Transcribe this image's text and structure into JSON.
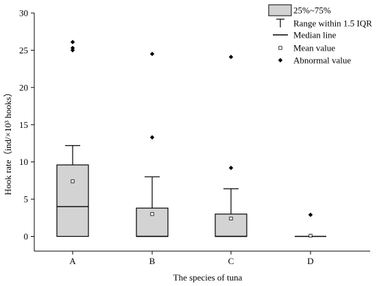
{
  "chart_data": {
    "type": "box",
    "xlabel": "The species of tuna",
    "ylabel": "Hook rate（ind/×10³ hooks）",
    "ylim": [
      0,
      30
    ],
    "yticks": [
      0,
      5,
      10,
      15,
      20,
      25,
      30
    ],
    "categories": [
      "A",
      "B",
      "C",
      "D"
    ],
    "boxes": [
      {
        "category": "A",
        "q1": 0,
        "median": 4.0,
        "q3": 9.6,
        "whisker_low": 0,
        "whisker_high": 12.2,
        "mean": 7.4,
        "outliers": [
          25.0,
          25.3,
          26.1
        ]
      },
      {
        "category": "B",
        "q1": 0,
        "median": 0,
        "q3": 3.8,
        "whisker_low": 0,
        "whisker_high": 8.0,
        "mean": 3.0,
        "outliers": [
          13.3,
          24.5
        ]
      },
      {
        "category": "C",
        "q1": 0,
        "median": 0,
        "q3": 3.0,
        "whisker_low": 0,
        "whisker_high": 6.4,
        "mean": 2.4,
        "outliers": [
          9.2,
          24.1
        ]
      },
      {
        "category": "D",
        "q1": 0,
        "median": 0,
        "q3": 0,
        "whisker_low": 0,
        "whisker_high": 0,
        "mean": 0.1,
        "outliers": [
          2.9
        ]
      }
    ],
    "legend": {
      "position": "top-right",
      "items": [
        {
          "key": "box",
          "label": "25%~75%"
        },
        {
          "key": "whisker",
          "label": "Range within 1.5 IQR"
        },
        {
          "key": "median",
          "label": "Median line"
        },
        {
          "key": "mean",
          "label": "Mean value"
        },
        {
          "key": "outlier",
          "label": "Abnormal value"
        }
      ]
    },
    "colors": {
      "box_fill": "#d3d3d3",
      "stroke": "#000000"
    }
  }
}
